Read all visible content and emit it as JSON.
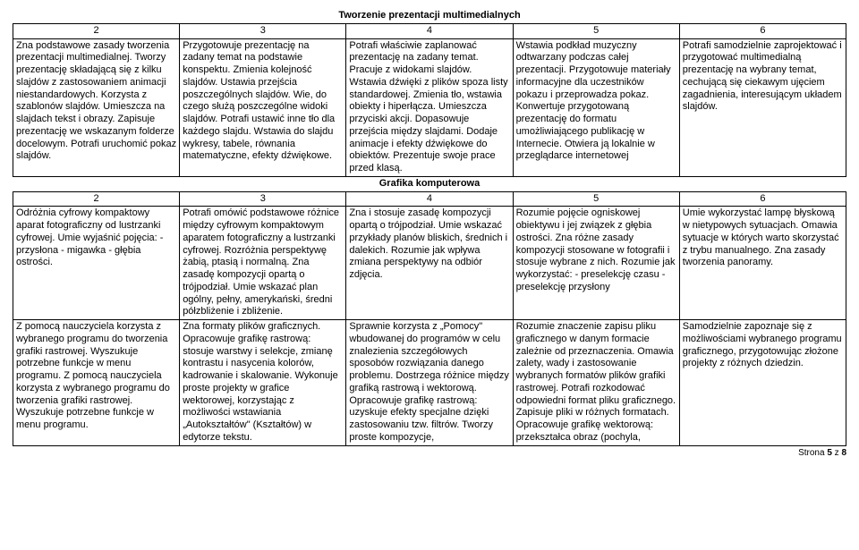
{
  "sections": {
    "s1": {
      "title": "Tworzenie prezentacji multimedialnych",
      "nums": [
        "2",
        "3",
        "4",
        "5",
        "6"
      ],
      "cells": [
        "Zna podstawowe zasady tworzenia prezentacji multimedialnej.\nTworzy prezentację składającą się z kilku slajdów z zastosowaniem animacji niestandardowych.\nKorzysta z szablonów slajdów.\nUmieszcza na slajdach tekst i obrazy.\nZapisuje prezentację we wskazanym folderze docelowym.\nPotrafi uruchomić pokaz slajdów.",
        "Przygotowuje prezentację na zadany temat na podstawie konspektu.\nZmienia kolejność slajdów.\nUstawia przejścia poszczególnych slajdów.\nWie, do czego służą poszczególne widoki slajdów.\nPotrafi ustawić inne tło dla każdego slajdu.\nWstawia do slajdu wykresy, tabele, równania matematyczne, efekty dźwiękowe.",
        "Potrafi właściwie zaplanować prezentację na zadany temat.\nPracuje z widokami slajdów.\nWstawia dźwięki z plików spoza listy standardowej.\nZmienia tło, wstawia obiekty i hiperłącza. Umieszcza przyciski akcji.\nDopasowuje przejścia między slajdami. Dodaje animacje i efekty dźwiękowe do obiektów.\nPrezentuje swoje prace przed klasą.",
        "Wstawia podkład muzyczny odtwarzany podczas całej prezentacji.\nPrzygotowuje materiały informacyjne dla uczestników pokazu i przeprowadza pokaz.\nKonwertuje przygotowaną prezentację do formatu umożliwiającego publikację w Internecie.\nOtwiera ją lokalnie w przeglądarce internetowej",
        "Potrafi samodzielnie zaprojektować i przygotować multimedialną prezentację na wybrany temat, cechującą się ciekawym ujęciem zagadnienia, interesującym układem slajdów."
      ]
    },
    "s2": {
      "title": "Grafika komputerowa",
      "nums": [
        "2",
        "3",
        "4",
        "5",
        "6"
      ],
      "row1": [
        "Odróżnia cyfrowy kompaktowy aparat fotograficzny od lustrzanki cyfrowej.\nUmie wyjaśnić pojęcia:\n- przysłona\n- migawka\n- głębia ostrości.",
        "Potrafi omówić podstawowe różnice między cyfrowym kompaktowym aparatem fotograficzny a lustrzanki cyfrowej.\nRozróżnia perspektywę żabią, ptasią i normalną.\nZna zasadę kompozycji opartą o trójpodział.\nUmie wskazać plan ogólny, pełny, amerykański, średni półzbliżenie i zbliżenie.",
        "Zna i stosuje zasadę kompozycji opartą o trójpodział.\nUmie wskazać przykłady planów bliskich, średnich i dalekich.\nRozumie jak wpływa zmiana perspektywy na odbiór zdjęcia.",
        "Rozumie pojęcie ogniskowej obiektywu i jej związek z głębia ostrości.\nZna różne zasady kompozycji stosowane w fotografii i stosuje wybrane z nich.\nRozumie jak wykorzystać:\n- preselekcję czasu\n- preselekcję przysłony",
        "Umie wykorzystać lampę błyskową w nietypowych sytuacjach.\nOmawia sytuacje w których warto skorzystać z trybu manualnego.\nZna zasady tworzenia panoramy."
      ],
      "row2": [
        "Z pomocą nauczyciela korzysta z wybranego programu do tworzenia grafiki rastrowej.\nWyszukuje potrzebne funkcje w menu programu.\nZ pomocą nauczyciela korzysta z wybranego programu do tworzenia grafiki rastrowej.\nWyszukuje potrzebne funkcje w menu programu.",
        "Zna formaty plików graficznych.\nOpracowuje grafikę rastrową: stosuje warstwy i selekcje, zmianę kontrastu i nasycenia kolorów, kadrowanie i skalowanie.\nWykonuje proste projekty w grafice wektorowej, korzystając z możliwości wstawiania „Autokształtów\" (Kształtów) w edytorze tekstu.",
        "Sprawnie korzysta z „Pomocy\" wbudowanej do programów w celu znalezienia szczegółowych sposobów rozwiązania danego problemu.\nDostrzega różnice między grafiką rastrową i wektorową.\nOpracowuje grafikę rastrową: uzyskuje efekty specjalne dzięki zastosowaniu tzw. filtrów.\nTworzy proste kompozycje,",
        "Rozumie znaczenie zapisu pliku graficznego w danym formacie zależnie od przeznaczenia.\nOmawia zalety, wady i zastosowanie wybranych formatów plików grafiki rastrowej.\nPotrafi rozkodować odpowiedni format pliku graficznego. Zapisuje pliki w różnych formatach.\nOpracowuje grafikę wektorową: przekształca obraz (pochyla,",
        "Samodzielnie zapoznaje się z możliwościami wybranego programu graficznego, przygotowując złożone projekty z różnych dziedzin."
      ]
    }
  },
  "footer": {
    "label": "Strona",
    "page": "5",
    "of": "z",
    "total": "8"
  }
}
